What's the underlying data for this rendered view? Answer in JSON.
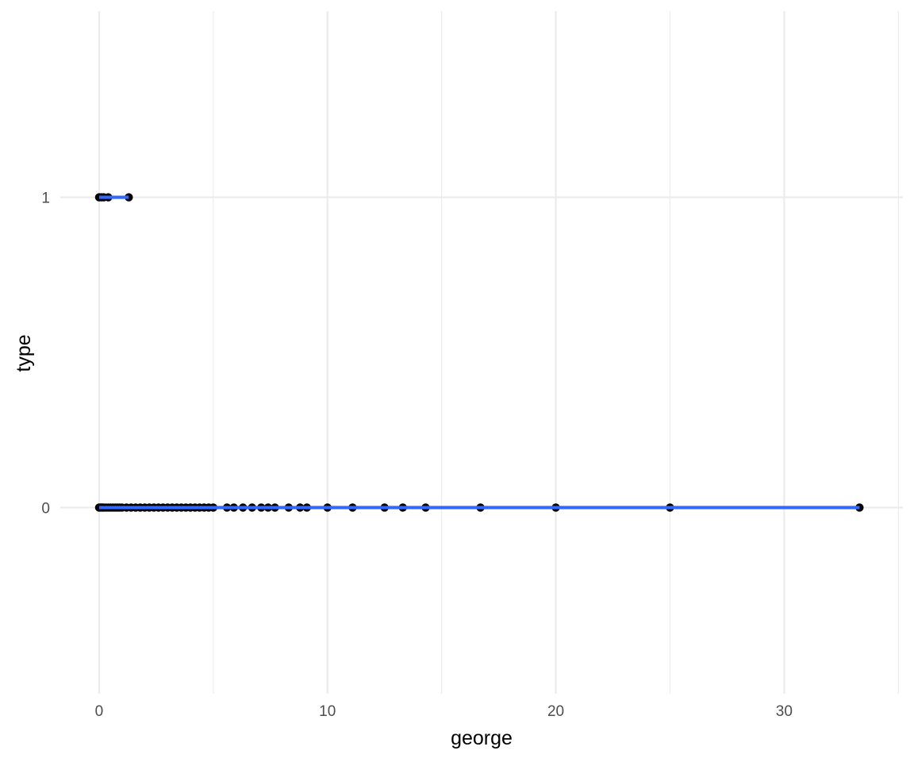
{
  "chart_data": {
    "type": "scatter",
    "title": "",
    "xlabel": "george",
    "ylabel": "type",
    "xlim": [
      -1.7,
      35.2
    ],
    "ylim": [
      -0.6,
      1.6
    ],
    "x_ticks": [
      0,
      10,
      20,
      30
    ],
    "x_tick_labels": [
      "0",
      "10",
      "20",
      "30"
    ],
    "y_ticks": [
      0,
      1
    ],
    "y_tick_labels": [
      "0",
      "1"
    ],
    "grid": true,
    "legend": "none",
    "colors": {
      "points": "#000000",
      "fit_line": "#3366ff",
      "grid": "#ebebeb",
      "tick_text": "#4d4d4d"
    },
    "series": [
      {
        "values": [
          {
            "x": 0.0,
            "y": 0
          },
          {
            "x": 0.05,
            "y": 0
          },
          {
            "x": 0.1,
            "y": 0
          },
          {
            "x": 0.15,
            "y": 0
          },
          {
            "x": 0.2,
            "y": 0
          },
          {
            "x": 0.3,
            "y": 0
          },
          {
            "x": 0.4,
            "y": 0
          },
          {
            "x": 0.5,
            "y": 0
          },
          {
            "x": 0.6,
            "y": 0
          },
          {
            "x": 0.7,
            "y": 0
          },
          {
            "x": 0.8,
            "y": 0
          },
          {
            "x": 0.9,
            "y": 0
          },
          {
            "x": 1.0,
            "y": 0
          },
          {
            "x": 1.2,
            "y": 0
          },
          {
            "x": 1.4,
            "y": 0
          },
          {
            "x": 1.6,
            "y": 0
          },
          {
            "x": 1.8,
            "y": 0
          },
          {
            "x": 2.0,
            "y": 0
          },
          {
            "x": 2.2,
            "y": 0
          },
          {
            "x": 2.4,
            "y": 0
          },
          {
            "x": 2.6,
            "y": 0
          },
          {
            "x": 2.8,
            "y": 0
          },
          {
            "x": 3.0,
            "y": 0
          },
          {
            "x": 3.2,
            "y": 0
          },
          {
            "x": 3.4,
            "y": 0
          },
          {
            "x": 3.6,
            "y": 0
          },
          {
            "x": 3.8,
            "y": 0
          },
          {
            "x": 4.0,
            "y": 0
          },
          {
            "x": 4.2,
            "y": 0
          },
          {
            "x": 4.4,
            "y": 0
          },
          {
            "x": 4.6,
            "y": 0
          },
          {
            "x": 4.8,
            "y": 0
          },
          {
            "x": 5.0,
            "y": 0
          },
          {
            "x": 5.6,
            "y": 0
          },
          {
            "x": 5.9,
            "y": 0
          },
          {
            "x": 6.3,
            "y": 0
          },
          {
            "x": 6.7,
            "y": 0
          },
          {
            "x": 7.1,
            "y": 0
          },
          {
            "x": 7.4,
            "y": 0
          },
          {
            "x": 7.7,
            "y": 0
          },
          {
            "x": 8.3,
            "y": 0
          },
          {
            "x": 8.8,
            "y": 0
          },
          {
            "x": 9.1,
            "y": 0
          },
          {
            "x": 10.0,
            "y": 0
          },
          {
            "x": 11.1,
            "y": 0
          },
          {
            "x": 12.5,
            "y": 0
          },
          {
            "x": 13.3,
            "y": 0
          },
          {
            "x": 14.3,
            "y": 0
          },
          {
            "x": 16.7,
            "y": 0
          },
          {
            "x": 20.0,
            "y": 0
          },
          {
            "x": 25.0,
            "y": 0
          },
          {
            "x": 33.3,
            "y": 0
          },
          {
            "x": 0.0,
            "y": 1
          },
          {
            "x": 0.1,
            "y": 1
          },
          {
            "x": 0.2,
            "y": 1
          },
          {
            "x": 0.4,
            "y": 1
          },
          {
            "x": 1.3,
            "y": 1
          }
        ]
      }
    ],
    "fit_lines": [
      {
        "x": [
          0.0,
          33.3
        ],
        "y": [
          0,
          0
        ]
      },
      {
        "x": [
          0.0,
          1.3
        ],
        "y": [
          1,
          1
        ]
      }
    ]
  }
}
